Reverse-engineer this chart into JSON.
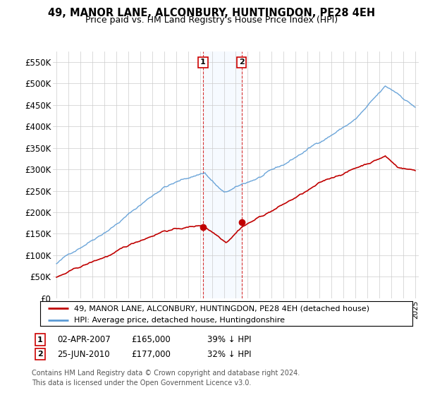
{
  "title": "49, MANOR LANE, ALCONBURY, HUNTINGDON, PE28 4EH",
  "subtitle": "Price paid vs. HM Land Registry's House Price Index (HPI)",
  "ylim": [
    0,
    575000
  ],
  "yticks": [
    0,
    50000,
    100000,
    150000,
    200000,
    250000,
    300000,
    350000,
    400000,
    450000,
    500000,
    550000
  ],
  "ytick_labels": [
    "£0",
    "£50K",
    "£100K",
    "£150K",
    "£200K",
    "£250K",
    "£300K",
    "£350K",
    "£400K",
    "£450K",
    "£500K",
    "£550K"
  ],
  "hpi_color": "#5b9bd5",
  "price_color": "#c00000",
  "sale1_year": 2007.25,
  "sale1_price": 165000,
  "sale2_year": 2010.49,
  "sale2_price": 177000,
  "legend_line1": "49, MANOR LANE, ALCONBURY, HUNTINGDON, PE28 4EH (detached house)",
  "legend_line2": "HPI: Average price, detached house, Huntingdonshire",
  "annot1_date": "02-APR-2007",
  "annot1_price": "£165,000",
  "annot1_pct": "39% ↓ HPI",
  "annot2_date": "25-JUN-2010",
  "annot2_price": "£177,000",
  "annot2_pct": "32% ↓ HPI",
  "footnote_line1": "Contains HM Land Registry data © Crown copyright and database right 2024.",
  "footnote_line2": "This data is licensed under the Open Government Licence v3.0.",
  "highlight_color": "#ddeeff",
  "vline_color": "#cc0000"
}
